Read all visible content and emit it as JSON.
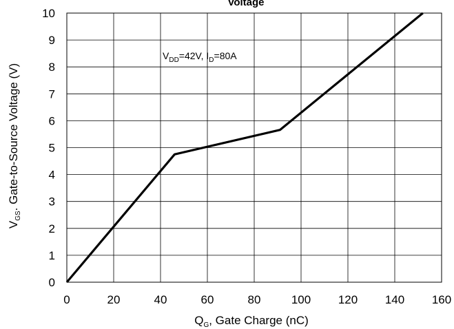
{
  "chart_data": {
    "type": "line",
    "title": "Voltage",
    "xlabel": {
      "main": "Q",
      "sub": "G",
      "rest": ", Gate Charge (nC)"
    },
    "ylabel": {
      "main": "V",
      "sub": "GS",
      "rest": ". Gate-to-Source Voltage (V)"
    },
    "annotation": {
      "part1": "V",
      "sub1": "DD",
      "part2": "=42V, I",
      "sub2": "D",
      "part3": "=80A"
    },
    "xlim": [
      0,
      160
    ],
    "ylim": [
      0,
      10
    ],
    "xticks": [
      "0",
      "20",
      "40",
      "60",
      "80",
      "100",
      "120",
      "140",
      "160"
    ],
    "yticks": [
      "0",
      "1",
      "2",
      "3",
      "4",
      "5",
      "6",
      "7",
      "8",
      "9",
      "10"
    ],
    "grid": true,
    "series": [
      {
        "x": [
          0,
          46,
          91,
          152
        ],
        "y": [
          0,
          4.75,
          5.66,
          10
        ],
        "color": "#000000"
      }
    ]
  }
}
